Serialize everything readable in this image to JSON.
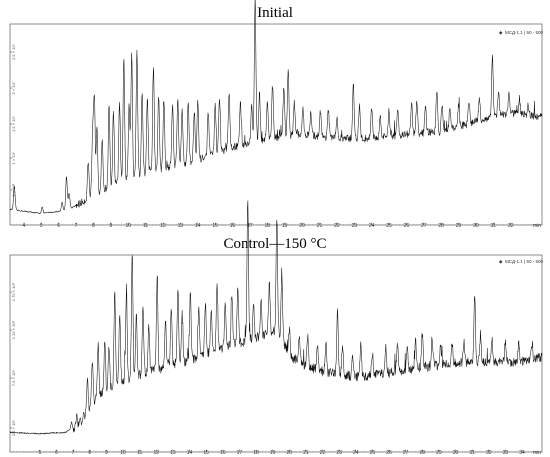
{
  "chart_data": [
    {
      "type": "line",
      "title": "Initial",
      "legend": "MCД-1.1 | 50 - 500",
      "legend_position": "top-right",
      "x_unit": "min",
      "xlim": [
        3.2,
        33.8
      ],
      "x_ticks": [
        "4",
        "5",
        "6",
        "7",
        "8",
        "9",
        "10",
        "11",
        "12",
        "13",
        "14",
        "15",
        "16",
        "17",
        "18",
        "19",
        "20",
        "21",
        "22",
        "23",
        "24",
        "25",
        "26",
        "27",
        "28",
        "29",
        "30",
        "31",
        "32"
      ],
      "y_ticks": [
        "5 × 10⁶",
        "1 × 10⁷",
        "1.5 × 10⁷",
        "2 × 10⁷",
        "2.5 × 10⁷"
      ],
      "ylim": [
        0,
        30000000
      ],
      "grid": false,
      "baseline": [
        [
          3.2,
          1.0
        ],
        [
          5.0,
          0.6
        ],
        [
          6.5,
          0.9
        ],
        [
          7.5,
          1.8
        ],
        [
          8.5,
          2.8
        ],
        [
          10,
          3.8
        ],
        [
          12,
          4.8
        ],
        [
          14,
          5.6
        ],
        [
          16,
          6.8
        ],
        [
          18,
          7.6
        ],
        [
          20,
          8.0
        ],
        [
          22,
          7.6
        ],
        [
          24,
          7.6
        ],
        [
          26,
          8.0
        ],
        [
          28,
          8.2
        ],
        [
          30,
          9.2
        ],
        [
          32,
          10.0
        ],
        [
          33.8,
          9.6
        ]
      ],
      "peaks": [
        [
          3.45,
          2.2
        ],
        [
          5.05,
          0.6
        ],
        [
          6.2,
          0.8
        ],
        [
          6.45,
          3.2
        ],
        [
          6.6,
          1.5
        ],
        [
          7.7,
          3.5
        ],
        [
          7.95,
          5.8
        ],
        [
          8.05,
          9.0
        ],
        [
          8.2,
          6.5
        ],
        [
          8.5,
          4.5
        ],
        [
          8.9,
          7.8
        ],
        [
          9.15,
          6.8
        ],
        [
          9.5,
          7.5
        ],
        [
          9.75,
          11.4
        ],
        [
          10.05,
          6.5
        ],
        [
          10.2,
          11.7
        ],
        [
          10.5,
          11.9
        ],
        [
          10.8,
          8.0
        ],
        [
          11.1,
          7.2
        ],
        [
          11.45,
          9.8
        ],
        [
          11.75,
          7.0
        ],
        [
          12.05,
          6.5
        ],
        [
          12.55,
          6.0
        ],
        [
          12.85,
          6.2
        ],
        [
          13.1,
          5.0
        ],
        [
          13.45,
          5.5
        ],
        [
          13.8,
          4.8
        ],
        [
          14.0,
          5.5
        ],
        [
          14.6,
          4.2
        ],
        [
          15.0,
          4.5
        ],
        [
          15.25,
          5.0
        ],
        [
          15.8,
          5.0
        ],
        [
          16.45,
          4.0
        ],
        [
          17.1,
          3.5
        ],
        [
          17.3,
          13.3
        ],
        [
          17.55,
          4.5
        ],
        [
          18.0,
          3.5
        ],
        [
          18.3,
          5.0
        ],
        [
          18.95,
          4.8
        ],
        [
          19.2,
          6.0
        ],
        [
          19.55,
          3.0
        ],
        [
          20.05,
          2.5
        ],
        [
          20.5,
          2.0
        ],
        [
          21.05,
          2.5
        ],
        [
          21.5,
          2.5
        ],
        [
          22.0,
          2.0
        ],
        [
          22.95,
          5.2
        ],
        [
          23.3,
          3.0
        ],
        [
          24.0,
          3.0
        ],
        [
          24.5,
          2.0
        ],
        [
          25.0,
          2.5
        ],
        [
          25.5,
          2.5
        ],
        [
          26.3,
          2.8
        ],
        [
          26.6,
          3.0
        ],
        [
          27.1,
          2.5
        ],
        [
          27.75,
          4.0
        ],
        [
          28.05,
          2.5
        ],
        [
          28.5,
          2.0
        ],
        [
          29.0,
          2.0
        ],
        [
          29.6,
          2.0
        ],
        [
          30.2,
          2.0
        ],
        [
          30.95,
          5.7
        ],
        [
          31.3,
          2.5
        ],
        [
          31.9,
          1.8
        ],
        [
          32.5,
          1.5
        ],
        [
          33.0,
          1.0
        ]
      ]
    },
    {
      "type": "line",
      "title": "Control—150 °C",
      "legend": "MCД-1.1 | 50 - 500",
      "legend_position": "top-right",
      "x_unit": "min",
      "xlim": [
        3.2,
        35.2
      ],
      "x_ticks": [
        "5",
        "6",
        "7",
        "8",
        "9",
        "10",
        "11",
        "12",
        "13",
        "14",
        "15",
        "16",
        "17",
        "18",
        "19",
        "20",
        "21",
        "22",
        "23",
        "24",
        "25",
        "26",
        "27",
        "28",
        "29",
        "30",
        "31",
        "32",
        "33",
        "34"
      ],
      "y_ticks": [
        "2.5 × 10⁵",
        "7.5 × 10⁵",
        "1.25 × 10⁶",
        "1.75 × 10⁶"
      ],
      "ylim": [
        0,
        2100000
      ],
      "grid": false,
      "baseline": [
        [
          3.2,
          0.55
        ],
        [
          5.0,
          0.45
        ],
        [
          6.5,
          0.55
        ],
        [
          7.3,
          1.0
        ],
        [
          7.8,
          2.0
        ],
        [
          8.5,
          3.1
        ],
        [
          10,
          4.3
        ],
        [
          12,
          5.0
        ],
        [
          14,
          5.7
        ],
        [
          16,
          6.6
        ],
        [
          18,
          7.3
        ],
        [
          19.3,
          7.9
        ],
        [
          20,
          6.0
        ],
        [
          21,
          5.3
        ],
        [
          22,
          4.9
        ],
        [
          24,
          4.5
        ],
        [
          26,
          4.8
        ],
        [
          28,
          5.2
        ],
        [
          30,
          5.5
        ],
        [
          32,
          5.6
        ],
        [
          33.6,
          5.5
        ],
        [
          35.2,
          5.9
        ]
      ],
      "peaks": [
        [
          6.9,
          0.5
        ],
        [
          7.2,
          0.8
        ],
        [
          7.85,
          2.3
        ],
        [
          8.15,
          3.0
        ],
        [
          8.5,
          3.8
        ],
        [
          8.9,
          3.9
        ],
        [
          9.15,
          3.2
        ],
        [
          9.5,
          6.8
        ],
        [
          9.8,
          5.0
        ],
        [
          10.2,
          6.0
        ],
        [
          10.55,
          9.0
        ],
        [
          10.8,
          4.5
        ],
        [
          11.2,
          5.0
        ],
        [
          11.55,
          3.5
        ],
        [
          12.05,
          6.4
        ],
        [
          12.55,
          3.5
        ],
        [
          12.9,
          4.0
        ],
        [
          13.3,
          5.5
        ],
        [
          13.55,
          3.5
        ],
        [
          14.05,
          5.0
        ],
        [
          14.55,
          3.5
        ],
        [
          14.95,
          3.8
        ],
        [
          15.3,
          2.8
        ],
        [
          15.65,
          4.8
        ],
        [
          16.15,
          3.0
        ],
        [
          16.55,
          3.5
        ],
        [
          16.9,
          4.0
        ],
        [
          17.5,
          9.8
        ],
        [
          17.85,
          2.5
        ],
        [
          18.3,
          2.5
        ],
        [
          18.8,
          3.5
        ],
        [
          19.25,
          7.8
        ],
        [
          19.55,
          4.8
        ],
        [
          20.0,
          2.0
        ],
        [
          20.6,
          1.8
        ],
        [
          21.1,
          2.2
        ],
        [
          21.7,
          1.8
        ],
        [
          22.2,
          2.0
        ],
        [
          22.9,
          4.8
        ],
        [
          23.2,
          2.0
        ],
        [
          23.8,
          1.5
        ],
        [
          24.3,
          2.2
        ],
        [
          25.0,
          1.5
        ],
        [
          25.8,
          2.0
        ],
        [
          26.5,
          2.0
        ],
        [
          27.1,
          1.5
        ],
        [
          27.6,
          2.0
        ],
        [
          28.0,
          2.5
        ],
        [
          28.6,
          2.0
        ],
        [
          29.1,
          1.5
        ],
        [
          29.8,
          1.5
        ],
        [
          30.5,
          1.5
        ],
        [
          31.15,
          4.8
        ],
        [
          31.5,
          2.0
        ],
        [
          32.2,
          1.5
        ],
        [
          33.0,
          1.5
        ],
        [
          33.8,
          1.5
        ],
        [
          34.6,
          1.2
        ]
      ]
    }
  ]
}
